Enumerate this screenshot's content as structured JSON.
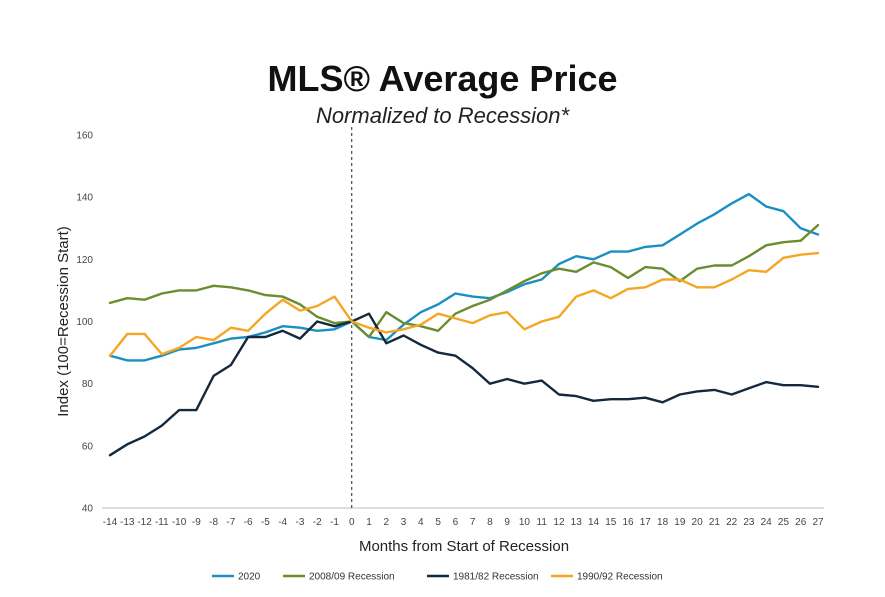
{
  "chart_data": {
    "type": "line",
    "title": "MLS® Average Price",
    "subtitle": "Normalized to Recession*",
    "xlabel": "Months from Start of Recession",
    "ylabel": "Index (100=Recession Start)",
    "ylim": [
      40,
      160
    ],
    "yticks": [
      40,
      60,
      80,
      100,
      120,
      140,
      160
    ],
    "x": [
      -14,
      -13,
      -12,
      -11,
      -10,
      -9,
      -8,
      -7,
      -6,
      -5,
      -4,
      -3,
      -2,
      -1,
      0,
      1,
      2,
      3,
      4,
      5,
      6,
      7,
      8,
      9,
      10,
      11,
      12,
      13,
      14,
      15,
      16,
      17,
      18,
      19,
      20,
      21,
      22,
      23,
      24,
      25,
      26,
      27
    ],
    "recession_start_marker": 0,
    "grid": false,
    "legend_position": "bottom",
    "series": [
      {
        "name": "2020",
        "color": "#1a8fc4",
        "values": [
          89,
          87.5,
          87.5,
          89,
          91,
          91.5,
          93,
          94.5,
          95,
          96.5,
          98.5,
          98,
          97,
          97.5,
          100,
          95,
          94,
          99,
          103,
          105.5,
          109,
          108,
          107.5,
          109.5,
          112,
          113.5,
          118.5,
          121,
          120,
          122.5,
          122.5,
          124,
          124.5,
          128,
          131.5,
          134.5,
          138,
          141,
          137,
          135.5,
          130,
          128
        ]
      },
      {
        "name": "2008/09 Recession",
        "color": "#6b8c2f",
        "values": [
          106,
          107.5,
          107,
          109,
          110,
          110,
          111.5,
          111,
          110,
          108.5,
          108,
          105.5,
          101.5,
          99.5,
          100,
          95,
          103,
          99.5,
          98.5,
          97,
          102.5,
          105,
          107,
          110,
          113,
          115.5,
          117,
          116,
          119,
          117.5,
          114,
          117.5,
          117,
          113,
          117,
          118,
          118,
          121,
          124.5,
          125.5,
          126,
          131
        ]
      },
      {
        "name": "1981/82 Recession",
        "color": "#14293d",
        "values": [
          57,
          60.5,
          63,
          66.5,
          71.5,
          71.5,
          82.5,
          86,
          95,
          95,
          97,
          94.5,
          100,
          98.5,
          100,
          102.5,
          93,
          95.5,
          92.5,
          90,
          89,
          85,
          80,
          81.5,
          80,
          81,
          76.5,
          76,
          74.5,
          75,
          75,
          75.5,
          74,
          76.5,
          77.5,
          78,
          76.5,
          78.5,
          80.5,
          79.5,
          79.5,
          79
        ]
      },
      {
        "name": "1990/92 Recession",
        "color": "#f5a623",
        "values": [
          89,
          96,
          96,
          89.5,
          91.5,
          95,
          94,
          98,
          97,
          102.5,
          107,
          103.5,
          105,
          108,
          100,
          98,
          96.5,
          97.5,
          99,
          102.5,
          101,
          99.5,
          102,
          103,
          97.5,
          100,
          101.5,
          108,
          110,
          107.5,
          110.5,
          111,
          113.5,
          113.5,
          111,
          111,
          113.5,
          116.5,
          116,
          120.5,
          121.5,
          122
        ]
      }
    ]
  }
}
